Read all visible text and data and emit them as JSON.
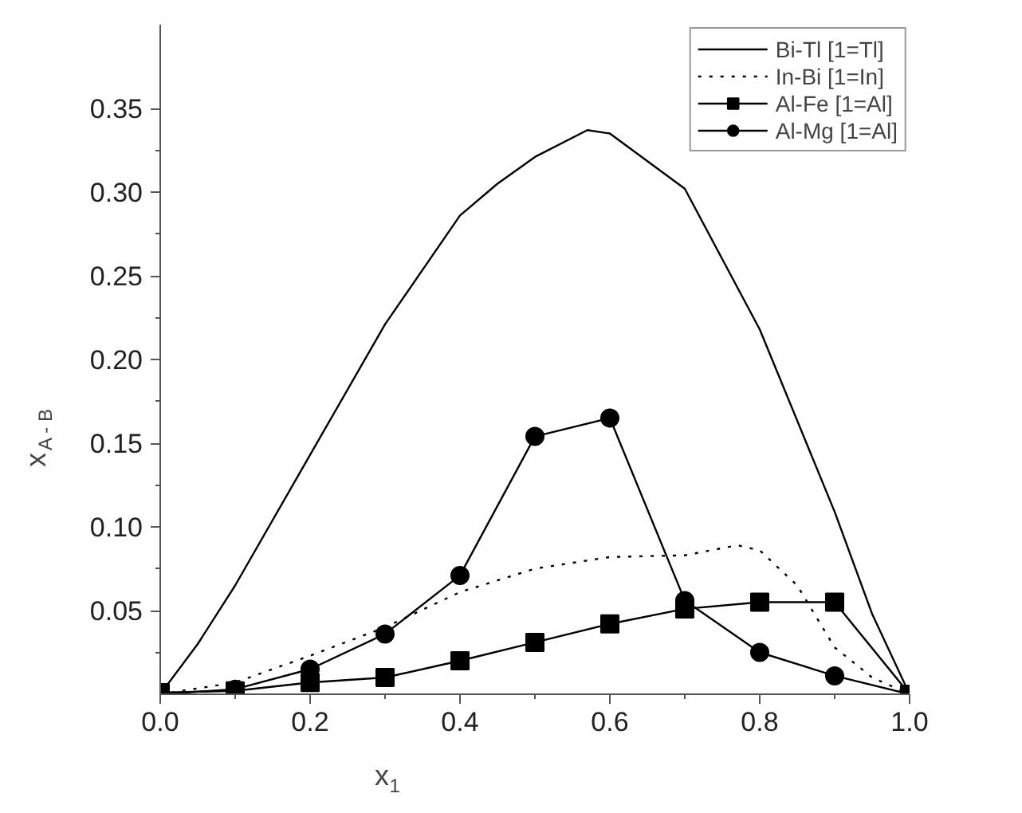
{
  "chart_data": {
    "type": "line",
    "xlabel": "x$_{1}$",
    "ylabel": "x$_{A - B}$",
    "xlim": [
      0,
      1.0
    ],
    "ylim": [
      0,
      0.4
    ],
    "xticks": [
      {
        "value": 0,
        "label": "0.0"
      },
      0.2,
      0.4,
      0.6,
      0.8,
      {
        "value": 1,
        "label": "1.0"
      }
    ],
    "yticks": [
      0.05,
      {
        "value": 0.1,
        "label": "0.10"
      },
      0.15,
      {
        "value": 0.2,
        "label": "0.20"
      },
      0.25,
      {
        "value": 0.3,
        "label": "0.30"
      },
      0.35
    ],
    "grid": false,
    "legend": "top right",
    "series": [
      {
        "name": "Bi-Tl [1=Tl]",
        "color": "#000000",
        "line_style": "solid",
        "marker": "none",
        "x": [
          0,
          0.05,
          0.1,
          0.2,
          0.3,
          0.4,
          0.45,
          0.5,
          0.57,
          0.6,
          0.7,
          0.8,
          0.9,
          0.95,
          1.0
        ],
        "values": [
          0,
          0.03,
          0.065,
          0.143,
          0.221,
          0.286,
          0.305,
          0.321,
          0.337,
          0.335,
          0.302,
          0.218,
          0.109,
          0.048,
          0
        ]
      },
      {
        "name": "In-Bi [1=In]",
        "color": "#000000",
        "line_style": "dotted",
        "marker": "none",
        "x": [
          0,
          0.1,
          0.2,
          0.3,
          0.4,
          0.5,
          0.6,
          0.7,
          0.77,
          0.8,
          0.85,
          0.9,
          0.95,
          1.0
        ],
        "values": [
          0,
          0.007,
          0.023,
          0.04,
          0.061,
          0.075,
          0.082,
          0.083,
          0.089,
          0.086,
          0.065,
          0.028,
          0.01,
          0
        ]
      },
      {
        "name": "Al-Fe [1=Al]",
        "color": "#000000",
        "line_style": "solid",
        "marker": "square",
        "x": [
          0,
          0.1,
          0.2,
          0.3,
          0.4,
          0.5,
          0.6,
          0.7,
          0.8,
          0.9,
          1.0
        ],
        "values": [
          0.001,
          0.002,
          0.007,
          0.01,
          0.02,
          0.031,
          0.042,
          0.051,
          0.055,
          0.055,
          0
        ]
      },
      {
        "name": "Al-Mg [1=Al]",
        "color": "#000000",
        "line_style": "solid",
        "marker": "circle",
        "x": [
          0,
          0.1,
          0.2,
          0.3,
          0.4,
          0.5,
          0.6,
          0.7,
          0.8,
          0.9,
          1.0
        ],
        "values": [
          0,
          0.003,
          0.015,
          0.036,
          0.071,
          0.154,
          0.165,
          0.056,
          0.025,
          0.011,
          0
        ]
      }
    ]
  }
}
